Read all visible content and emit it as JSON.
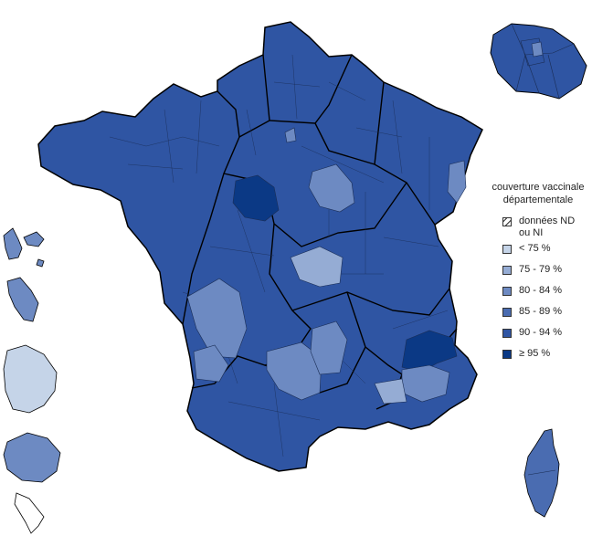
{
  "legend": {
    "title_line1": "couverture vaccinale",
    "title_line2": "départementale",
    "items": [
      {
        "label_line1": "données ND",
        "label_line2": "ou NI",
        "color": "#ffffff",
        "hatched": true
      },
      {
        "label_line1": "< 75 %",
        "color": "#c5d4e8"
      },
      {
        "label_line1": "75 - 79 %",
        "color": "#95acd4"
      },
      {
        "label_line1": "80 - 84 %",
        "color": "#6d8ac2"
      },
      {
        "label_line1": "85 - 89 %",
        "color": "#4a6cb1"
      },
      {
        "label_line1": "90 - 94 %",
        "color": "#2f55a3"
      },
      {
        "label_line1": "≥ 95 %",
        "color": "#0b3985"
      }
    ]
  },
  "colors": {
    "main": "#2f55a3",
    "very_high": "#0b3985",
    "mid": "#6d8ac2",
    "light_mid": "#95acd4",
    "light": "#c5d4e8",
    "border": "#000000"
  }
}
